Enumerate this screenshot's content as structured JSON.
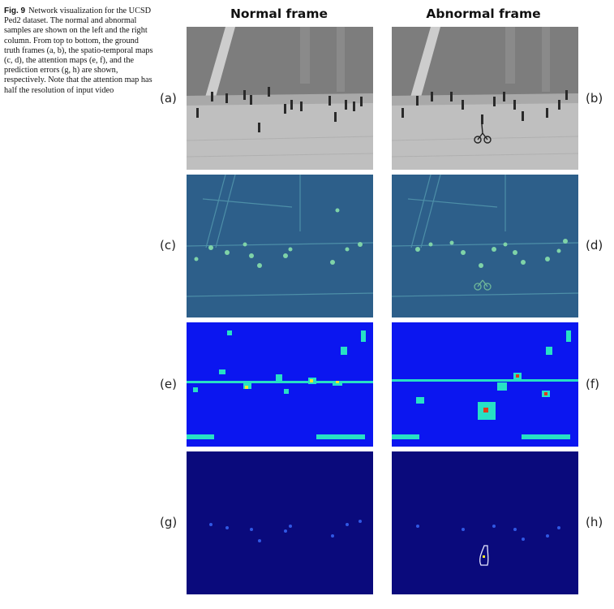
{
  "caption": {
    "label": "Fig. 9",
    "text": "Network visualization for the UCSD Ped2 dataset. The normal and abnormal samples are shown on the left and the right column. From top to bottom, the ground truth frames (a, b), the spatio-temporal maps (c, d), the attention maps (e, f), and the prediction errors (g, h) are shown, respectively. Note that the attention map has half the resolution of input video"
  },
  "columns": {
    "left": "Normal frame",
    "right": "Abnormal frame"
  },
  "panel_labels": {
    "a": "(a)",
    "b": "(b)",
    "c": "(c)",
    "d": "(d)",
    "e": "(e)",
    "f": "(f)",
    "g": "(g)",
    "h": "(h)"
  },
  "colors": {
    "frame_ground": "#bdbdbd",
    "frame_grass": "#7a7a7a",
    "st_map_bg": "#2d5f8a",
    "st_map_feature": "#7fd3a8",
    "attention_bg": "#0b16f0",
    "attention_hot": "#27e0c5",
    "attention_peak": "#e23a1a",
    "error_bg": "#0a0a7c"
  }
}
